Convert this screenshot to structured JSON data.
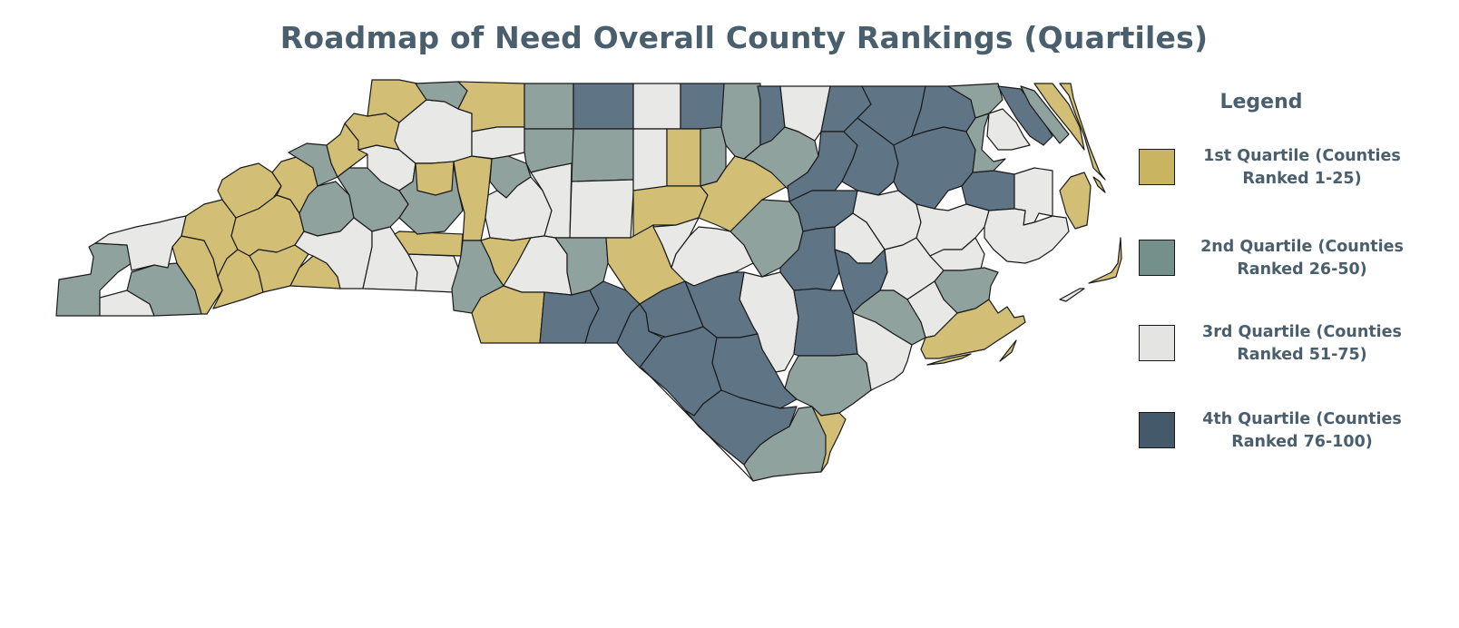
{
  "title": "Roadmap of Need Overall County Rankings (Quartiles)",
  "legend": {
    "title": "Legend",
    "items": [
      {
        "key": "q1",
        "line1": "1st Quartile (Counties",
        "line2": "Ranked 1-25)",
        "color": "#c8b461"
      },
      {
        "key": "q2",
        "line1": "2nd Quartile (Counties",
        "line2": "Ranked 26-50)",
        "color": "#74908a"
      },
      {
        "key": "q3",
        "line1": "3rd Quartile (Counties",
        "line2": "Ranked 51-75)",
        "color": "#e4e5e2"
      },
      {
        "key": "q4",
        "line1": "4th Quartile (Counties",
        "line2": "Ranked 76-100)",
        "color": "#445a6b"
      }
    ]
  },
  "map_colors": {
    "q1": "#d2bf75",
    "q2": "#8fa29d",
    "q3": "#e8e9e6",
    "q4": "#5f7585",
    "stroke": "#1a1a1a"
  }
}
